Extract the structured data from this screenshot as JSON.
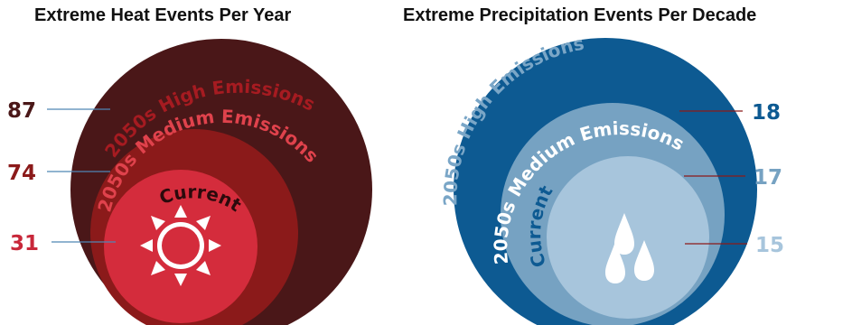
{
  "panels": {
    "heat": {
      "title": "Extreme Heat Events Per Year",
      "rings": [
        {
          "label": "2050s High Emissions",
          "value": "87",
          "fill": "#4a1718",
          "text_color": "#a61b21",
          "value_color": "#4a1718"
        },
        {
          "label": "2050s Medium Emissions",
          "value": "74",
          "fill": "#8b1a1a",
          "text_color": "#e0424c",
          "value_color": "#8b1a1a"
        },
        {
          "label": "Current",
          "value": "31",
          "fill": "#d42c3c",
          "text_color": "#2b0a0c",
          "value_color": "#c8283a"
        }
      ],
      "icon": "sun-icon"
    },
    "precipitation": {
      "title": "Extreme Precipitation Events Per Decade",
      "rings": [
        {
          "label": "2050s High Emissions",
          "value": "18",
          "fill": "#0d5a92",
          "text_color": "#7aa6c7",
          "value_color": "#0d5a92"
        },
        {
          "label": "2050s Medium Emissions",
          "value": "17",
          "fill": "#76a2c2",
          "text_color": "#ffffff",
          "value_color": "#76a2c2"
        },
        {
          "label": "Current",
          "value": "15",
          "fill": "#a7c5dc",
          "text_color": "#0d5a92",
          "value_color": "#a7c5dc"
        }
      ],
      "icon": "raindrops-icon"
    }
  },
  "leader_colors": {
    "heat": "#4f86b5",
    "precipitation": "#8b1a1a"
  }
}
